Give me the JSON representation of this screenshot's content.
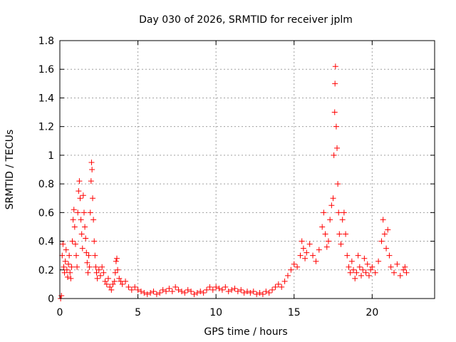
{
  "chart_data": {
    "type": "scatter",
    "title": "Day 030 of 2026, SRMTID for receiver jplm",
    "xlabel": "GPS time / hours",
    "ylabel": "SRMTID / TECUs",
    "xlim": [
      0,
      24
    ],
    "ylim": [
      0,
      1.8
    ],
    "xticks": [
      0,
      5,
      10,
      15,
      20
    ],
    "xtick_labels": [
      "0",
      "5",
      "10",
      "15",
      "20"
    ],
    "yticks": [
      0,
      0.2,
      0.4,
      0.6,
      0.8,
      1,
      1.2,
      1.4,
      1.6,
      1.8
    ],
    "ytick_labels": [
      "0",
      "0.2",
      "0.4",
      "0.6",
      "0.8",
      "1",
      "1.2",
      "1.4",
      "1.6",
      "1.8"
    ],
    "grid": true,
    "marker": "+",
    "series_color": "#ff0000",
    "series": [
      {
        "name": "SRMTID",
        "points": [
          [
            0.05,
            0.0
          ],
          [
            0.1,
            0.02
          ],
          [
            0.15,
            0.3
          ],
          [
            0.2,
            0.38
          ],
          [
            0.25,
            0.22
          ],
          [
            0.3,
            0.18
          ],
          [
            0.35,
            0.26
          ],
          [
            0.4,
            0.34
          ],
          [
            0.45,
            0.2
          ],
          [
            0.5,
            0.15
          ],
          [
            0.55,
            0.24
          ],
          [
            0.6,
            0.3
          ],
          [
            0.65,
            0.18
          ],
          [
            0.7,
            0.14
          ],
          [
            0.75,
            0.22
          ],
          [
            0.8,
            0.4
          ],
          [
            0.85,
            0.55
          ],
          [
            0.9,
            0.62
          ],
          [
            0.95,
            0.5
          ],
          [
            1.0,
            0.38
          ],
          [
            1.05,
            0.3
          ],
          [
            1.1,
            0.22
          ],
          [
            1.15,
            0.6
          ],
          [
            1.2,
            0.75
          ],
          [
            1.25,
            0.82
          ],
          [
            1.3,
            0.7
          ],
          [
            1.35,
            0.55
          ],
          [
            1.4,
            0.45
          ],
          [
            1.45,
            0.35
          ],
          [
            1.5,
            0.72
          ],
          [
            1.55,
            0.6
          ],
          [
            1.6,
            0.5
          ],
          [
            1.65,
            0.42
          ],
          [
            1.7,
            0.32
          ],
          [
            1.75,
            0.25
          ],
          [
            1.8,
            0.18
          ],
          [
            1.85,
            0.3
          ],
          [
            1.9,
            0.22
          ],
          [
            1.95,
            0.6
          ],
          [
            2.0,
            0.82
          ],
          [
            2.03,
            0.95
          ],
          [
            2.06,
            0.9
          ],
          [
            2.1,
            0.7
          ],
          [
            2.15,
            0.55
          ],
          [
            2.2,
            0.4
          ],
          [
            2.25,
            0.3
          ],
          [
            2.3,
            0.22
          ],
          [
            2.35,
            0.18
          ],
          [
            2.4,
            0.14
          ],
          [
            2.5,
            0.2
          ],
          [
            2.6,
            0.16
          ],
          [
            2.7,
            0.22
          ],
          [
            2.8,
            0.18
          ],
          [
            2.9,
            0.12
          ],
          [
            3.0,
            0.1
          ],
          [
            3.1,
            0.14
          ],
          [
            3.2,
            0.08
          ],
          [
            3.3,
            0.06
          ],
          [
            3.4,
            0.1
          ],
          [
            3.5,
            0.12
          ],
          [
            3.55,
            0.18
          ],
          [
            3.6,
            0.26
          ],
          [
            3.65,
            0.28
          ],
          [
            3.7,
            0.2
          ],
          [
            3.8,
            0.14
          ],
          [
            3.9,
            0.12
          ],
          [
            4.0,
            0.1
          ],
          [
            4.2,
            0.12
          ],
          [
            4.4,
            0.08
          ],
          [
            4.6,
            0.06
          ],
          [
            4.8,
            0.08
          ],
          [
            5.0,
            0.06
          ],
          [
            5.2,
            0.05
          ],
          [
            5.4,
            0.04
          ],
          [
            5.6,
            0.03
          ],
          [
            5.8,
            0.04
          ],
          [
            6.0,
            0.05
          ],
          [
            6.2,
            0.03
          ],
          [
            6.4,
            0.04
          ],
          [
            6.6,
            0.06
          ],
          [
            6.8,
            0.05
          ],
          [
            7.0,
            0.07
          ],
          [
            7.2,
            0.05
          ],
          [
            7.4,
            0.08
          ],
          [
            7.6,
            0.06
          ],
          [
            7.8,
            0.05
          ],
          [
            8.0,
            0.04
          ],
          [
            8.2,
            0.06
          ],
          [
            8.4,
            0.05
          ],
          [
            8.6,
            0.03
          ],
          [
            8.8,
            0.04
          ],
          [
            9.0,
            0.05
          ],
          [
            9.2,
            0.04
          ],
          [
            9.4,
            0.06
          ],
          [
            9.6,
            0.08
          ],
          [
            9.8,
            0.06
          ],
          [
            10.0,
            0.08
          ],
          [
            10.2,
            0.07
          ],
          [
            10.4,
            0.06
          ],
          [
            10.6,
            0.08
          ],
          [
            10.8,
            0.05
          ],
          [
            11.0,
            0.06
          ],
          [
            11.2,
            0.07
          ],
          [
            11.4,
            0.05
          ],
          [
            11.6,
            0.06
          ],
          [
            11.8,
            0.04
          ],
          [
            12.0,
            0.05
          ],
          [
            12.2,
            0.04
          ],
          [
            12.4,
            0.05
          ],
          [
            12.6,
            0.03
          ],
          [
            12.8,
            0.04
          ],
          [
            13.0,
            0.03
          ],
          [
            13.2,
            0.05
          ],
          [
            13.4,
            0.04
          ],
          [
            13.6,
            0.06
          ],
          [
            13.8,
            0.08
          ],
          [
            14.0,
            0.1
          ],
          [
            14.2,
            0.08
          ],
          [
            14.4,
            0.12
          ],
          [
            14.6,
            0.16
          ],
          [
            14.8,
            0.2
          ],
          [
            15.0,
            0.24
          ],
          [
            15.2,
            0.22
          ],
          [
            15.4,
            0.3
          ],
          [
            15.5,
            0.4
          ],
          [
            15.6,
            0.35
          ],
          [
            15.7,
            0.28
          ],
          [
            15.8,
            0.32
          ],
          [
            16.0,
            0.38
          ],
          [
            16.2,
            0.3
          ],
          [
            16.4,
            0.26
          ],
          [
            16.6,
            0.34
          ],
          [
            16.8,
            0.5
          ],
          [
            16.9,
            0.6
          ],
          [
            17.0,
            0.45
          ],
          [
            17.1,
            0.36
          ],
          [
            17.2,
            0.4
          ],
          [
            17.3,
            0.55
          ],
          [
            17.4,
            0.65
          ],
          [
            17.5,
            0.7
          ],
          [
            17.55,
            1.0
          ],
          [
            17.6,
            1.3
          ],
          [
            17.62,
            1.5
          ],
          [
            17.65,
            1.62
          ],
          [
            17.7,
            1.2
          ],
          [
            17.75,
            1.05
          ],
          [
            17.8,
            0.8
          ],
          [
            17.85,
            0.6
          ],
          [
            17.9,
            0.45
          ],
          [
            18.0,
            0.38
          ],
          [
            18.1,
            0.55
          ],
          [
            18.2,
            0.6
          ],
          [
            18.3,
            0.45
          ],
          [
            18.4,
            0.3
          ],
          [
            18.5,
            0.22
          ],
          [
            18.6,
            0.18
          ],
          [
            18.7,
            0.26
          ],
          [
            18.8,
            0.2
          ],
          [
            18.9,
            0.14
          ],
          [
            19.0,
            0.18
          ],
          [
            19.1,
            0.3
          ],
          [
            19.2,
            0.22
          ],
          [
            19.3,
            0.16
          ],
          [
            19.4,
            0.2
          ],
          [
            19.5,
            0.28
          ],
          [
            19.6,
            0.18
          ],
          [
            19.7,
            0.24
          ],
          [
            19.8,
            0.16
          ],
          [
            19.9,
            0.2
          ],
          [
            20.0,
            0.22
          ],
          [
            20.2,
            0.18
          ],
          [
            20.4,
            0.26
          ],
          [
            20.6,
            0.4
          ],
          [
            20.7,
            0.55
          ],
          [
            20.8,
            0.45
          ],
          [
            20.9,
            0.35
          ],
          [
            21.0,
            0.48
          ],
          [
            21.1,
            0.3
          ],
          [
            21.2,
            0.22
          ],
          [
            21.4,
            0.18
          ],
          [
            21.6,
            0.24
          ],
          [
            21.8,
            0.16
          ],
          [
            22.0,
            0.2
          ],
          [
            22.1,
            0.22
          ],
          [
            22.2,
            0.18
          ]
        ]
      }
    ]
  }
}
